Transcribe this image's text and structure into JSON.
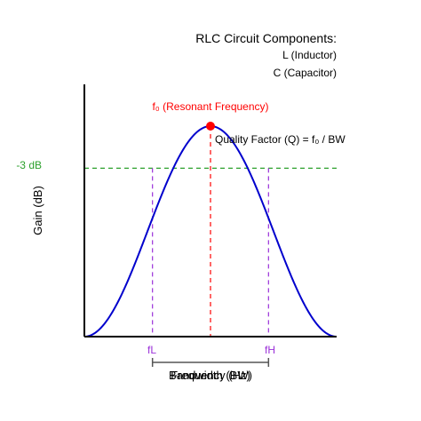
{
  "chart_data": {
    "type": "line",
    "title": "",
    "xlabel": "Frequency (Hz)",
    "ylabel": "Gain (dB)",
    "legend": {
      "title": "RLC Circuit Components:",
      "items": [
        "L (Inductor)",
        "C (Capacitor)"
      ]
    },
    "xlim": [
      0,
      10
    ],
    "ylim": [
      0,
      1
    ],
    "series": [
      {
        "x": [
          0,
          0.5,
          1,
          1.5,
          2,
          2.5,
          3,
          3.5,
          4,
          4.5,
          5,
          5.5,
          6,
          6.5,
          7,
          7.5,
          8,
          8.5,
          9,
          9.5,
          10
        ],
        "values": [
          0,
          0.024,
          0.095,
          0.206,
          0.345,
          0.5,
          0.655,
          0.794,
          0.905,
          0.976,
          1,
          0.976,
          0.905,
          0.794,
          0.655,
          0.5,
          0.345,
          0.206,
          0.095,
          0.024,
          0
        ],
        "color": "#0000cd"
      }
    ],
    "resonant_point": {
      "x": 5,
      "y": 1,
      "label": "f₀ (Resonant Frequency)",
      "color": "#ff0000"
    },
    "cutoff_line": {
      "y": 0.8,
      "label": "-3 dB",
      "color": "#2ca02c"
    },
    "cutoff_markers": [
      {
        "x": 2.7,
        "label": "fL"
      },
      {
        "x": 7.3,
        "label": "fH"
      }
    ],
    "marker_color": "#9b30d9",
    "bandwidth_label": "Bandwidth (BW)",
    "annotation": "Quality Factor (Q) = f₀ / BW"
  }
}
